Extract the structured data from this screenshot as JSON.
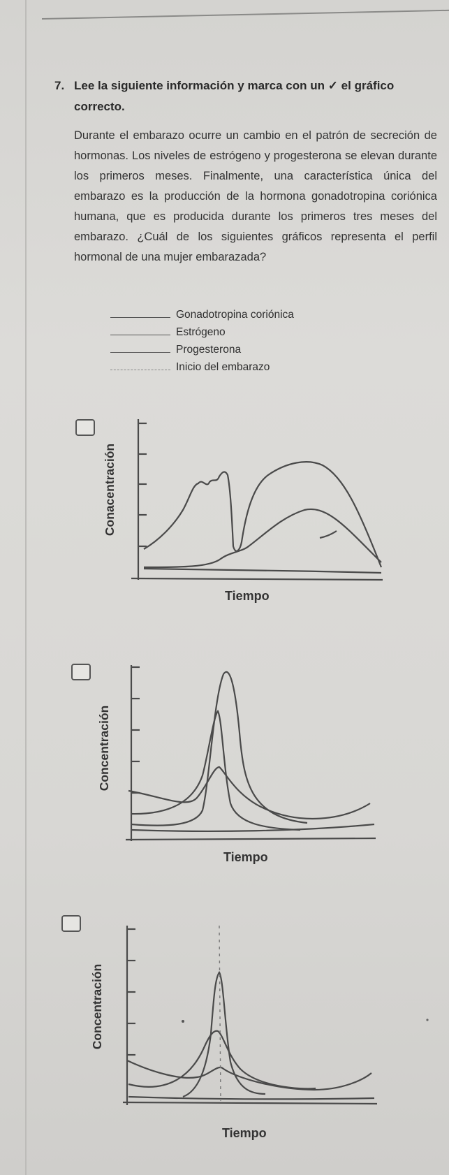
{
  "question": {
    "number": "7.",
    "prompt": "Lee la siguiente información y marca con un ✓ el gráfico correcto."
  },
  "passage": "Durante el embarazo ocurre un cambio en el patrón de secreción de hormonas. Los niveles de estrógeno y progesterona se elevan durante los primeros meses. Finalmente, una característica única del embarazo es la producción de la hormona gonadotropina coriónica humana, que es producida durante los primeros tres meses del embarazo. ¿Cuál de los siguientes gráficos representa el perfil hormonal de una mujer embarazada?",
  "legend": [
    {
      "label": "Gonadotropina coriónica",
      "style": "solid"
    },
    {
      "label": "Estrógeno",
      "style": "solid"
    },
    {
      "label": "Progesterona",
      "style": "solid"
    },
    {
      "label": "Inicio del embarazo",
      "style": "dashed"
    }
  ],
  "options": [
    {
      "ylabel": "Conacentración",
      "xlabel": "Tiempo",
      "checked": false
    },
    {
      "ylabel": "Concentración",
      "xlabel": "Tiempo",
      "checked": false
    },
    {
      "ylabel": "Concentración",
      "xlabel": "Tiempo",
      "checked": false
    }
  ],
  "colors": {
    "ink": "#2a2a2a",
    "curve": "#4a4a4a",
    "paper": "#d9d8d5"
  }
}
